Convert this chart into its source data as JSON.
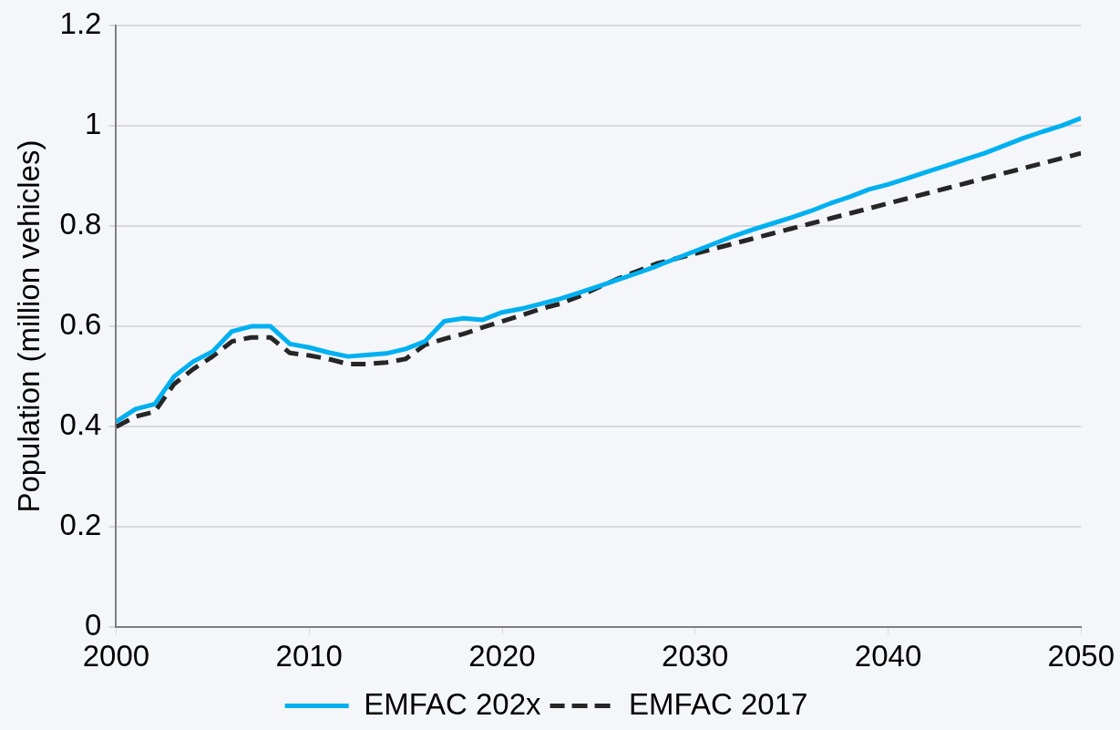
{
  "chart_data": {
    "type": "line",
    "ylabel": "Population (million vehicles)",
    "x": [
      2000,
      2001,
      2002,
      2003,
      2004,
      2005,
      2006,
      2007,
      2008,
      2009,
      2010,
      2011,
      2012,
      2013,
      2014,
      2015,
      2016,
      2017,
      2018,
      2019,
      2020,
      2021,
      2022,
      2023,
      2024,
      2025,
      2026,
      2027,
      2028,
      2029,
      2030,
      2031,
      2032,
      2033,
      2034,
      2035,
      2036,
      2037,
      2038,
      2039,
      2040,
      2041,
      2042,
      2043,
      2044,
      2045,
      2046,
      2047,
      2048,
      2049,
      2050
    ],
    "series": [
      {
        "name": "EMFAC 202x",
        "color": "#00b0f0",
        "line_style": "solid",
        "values": [
          0.41,
          0.435,
          0.445,
          0.5,
          0.53,
          0.55,
          0.59,
          0.6,
          0.6,
          0.565,
          0.558,
          0.548,
          0.54,
          0.543,
          0.546,
          0.555,
          0.57,
          0.61,
          0.616,
          0.613,
          0.628,
          0.635,
          0.645,
          0.655,
          0.667,
          0.68,
          0.693,
          0.706,
          0.72,
          0.735,
          0.75,
          0.765,
          0.78,
          0.793,
          0.805,
          0.817,
          0.83,
          0.845,
          0.858,
          0.873,
          0.883,
          0.895,
          0.908,
          0.92,
          0.933,
          0.945,
          0.96,
          0.975,
          0.988,
          1.0,
          1.015
        ]
      },
      {
        "name": "EMFAC 2017",
        "color": "#262626",
        "line_style": "dashed",
        "values": [
          0.4,
          0.42,
          0.43,
          0.485,
          0.515,
          0.54,
          0.57,
          0.578,
          0.578,
          0.547,
          0.542,
          0.535,
          0.525,
          0.525,
          0.528,
          0.535,
          0.563,
          0.575,
          0.585,
          0.598,
          0.61,
          0.622,
          0.635,
          0.645,
          0.66,
          0.678,
          0.695,
          0.71,
          0.725,
          0.735,
          0.745,
          0.755,
          0.765,
          0.775,
          0.785,
          0.795,
          0.805,
          0.815,
          0.825,
          0.835,
          0.845,
          0.855,
          0.865,
          0.875,
          0.885,
          0.895,
          0.905,
          0.915,
          0.925,
          0.935,
          0.945
        ]
      }
    ],
    "xlim": [
      2000,
      2050
    ],
    "xticks": [
      2000,
      2010,
      2020,
      2030,
      2040,
      2050
    ],
    "ylim": [
      0,
      1.2
    ],
    "yticks": [
      0,
      0.2,
      0.4,
      0.6,
      0.8,
      1,
      1.2
    ],
    "grid": "y",
    "legend": "bottom",
    "marker": "none"
  }
}
